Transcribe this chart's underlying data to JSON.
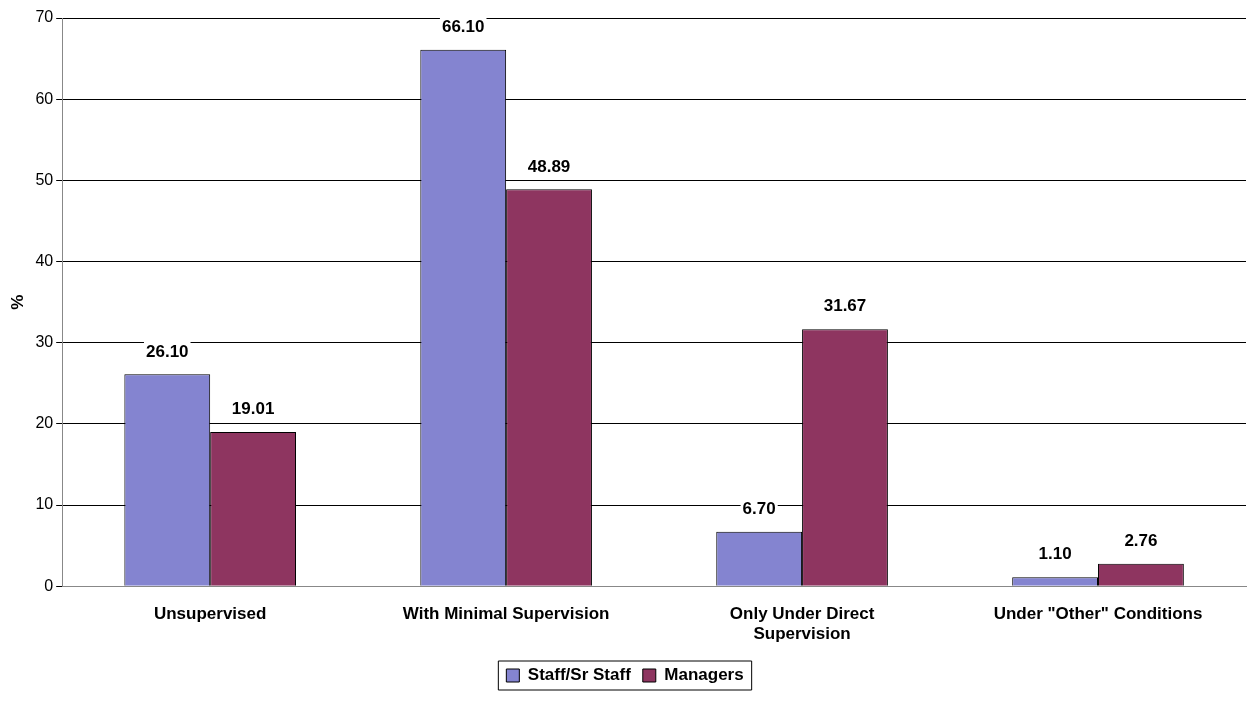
{
  "chart_data": {
    "type": "bar",
    "ylabel": "%",
    "categories": [
      "Unsupervised",
      "With Minimal Supervision",
      "Only Under Direct Supervision",
      "Under \"Other\" Conditions"
    ],
    "series": [
      {
        "name": "Staff/Sr Staff",
        "color": "#8484d0",
        "values": [
          26.1,
          66.1,
          6.7,
          1.1
        ],
        "value_labels": [
          "26.10",
          "66.10",
          "6.70",
          "1.10"
        ]
      },
      {
        "name": "Managers",
        "color": "#8e3560",
        "values": [
          19.01,
          48.89,
          31.67,
          2.76
        ],
        "value_labels": [
          "19.01",
          "48.89",
          "31.67",
          "2.76"
        ]
      }
    ],
    "ylim": [
      0,
      70
    ],
    "yticks": [
      0,
      10,
      20,
      30,
      40,
      50,
      60,
      70
    ],
    "grid": "y",
    "legend": "bottom"
  }
}
